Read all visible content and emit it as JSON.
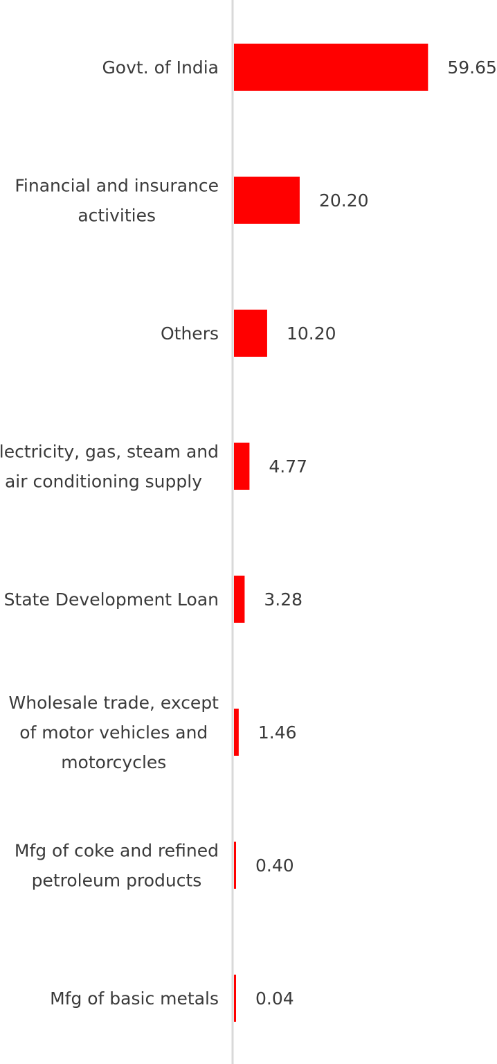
{
  "chart_data": {
    "type": "bar",
    "orientation": "horizontal",
    "categories": [
      [
        "Govt. of India"
      ],
      [
        "Financial and insurance",
        "activities"
      ],
      [
        "Others"
      ],
      [
        "Electricity, gas, steam and",
        "air conditioning supply"
      ],
      [
        "State Development Loan"
      ],
      [
        "Wholesale trade, except",
        "of motor vehicles and",
        "motorcycles"
      ],
      [
        "Mfg of coke and refined",
        "petroleum products"
      ],
      [
        "Mfg of basic metals"
      ]
    ],
    "values": [
      59.65,
      20.2,
      10.2,
      4.77,
      3.28,
      1.46,
      0.4,
      0.04
    ],
    "value_labels": [
      "59.65",
      "20.20",
      "10.20",
      "4.77",
      "3.28",
      "1.46",
      "0.40",
      "0.04"
    ],
    "bar_color": "#ff0000",
    "axis_color": "#d9d9d9",
    "grid": false,
    "legend": "none",
    "xlim": [
      0,
      60
    ]
  }
}
